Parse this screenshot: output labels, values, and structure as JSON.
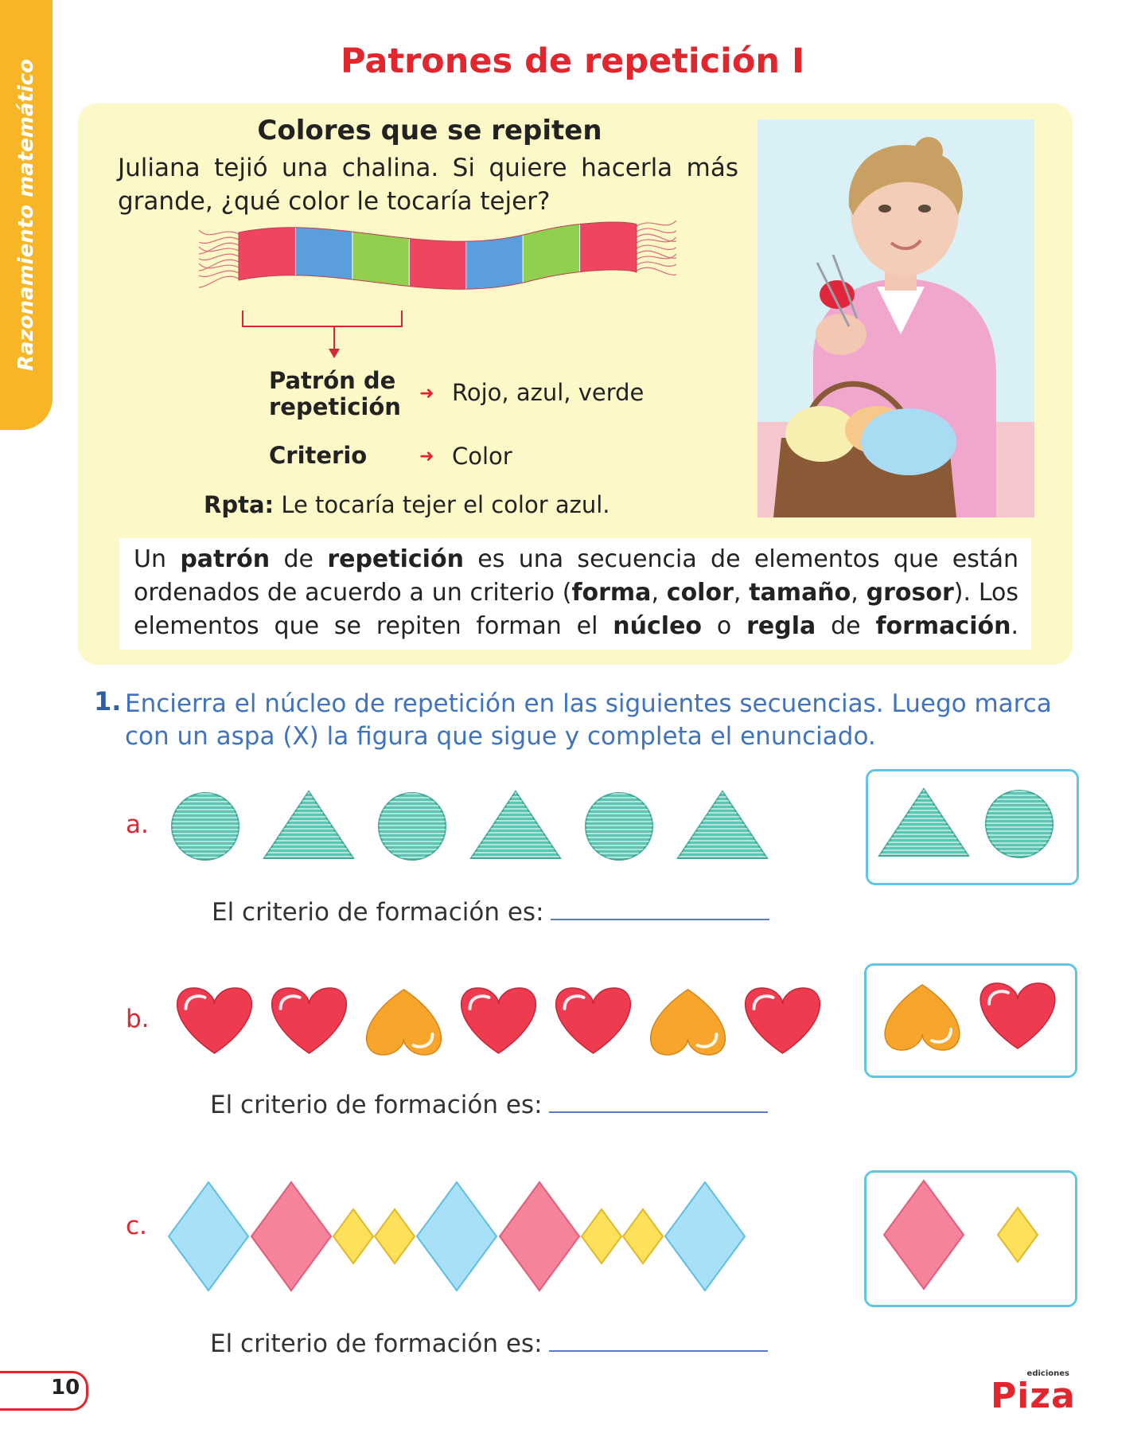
{
  "side_tab": {
    "text": "Razonamiento matemático",
    "color": "#f8b526"
  },
  "title": "Patrones de repetición I",
  "intro": {
    "subtitle": "Colores que se repiten",
    "problem": "Juliana tejió una chalina. Si quiere hacerla más grande, ¿qué color le tocaría tejer?",
    "scarf_stripes": [
      "#ef4560",
      "#5a9edc",
      "#8fd14f",
      "#ef4560",
      "#5a9edc",
      "#8fd14f",
      "#ef4560"
    ],
    "patron_label": "Patrón de repetición",
    "patron_value": "Rojo, azul, verde",
    "criterio_label": "Criterio",
    "criterio_value": "Color",
    "answer_label": "Rpta:",
    "answer_text": "Le tocaría tejer el color azul.",
    "definition": {
      "segments": [
        {
          "t": "Un ",
          "b": false
        },
        {
          "t": "patrón",
          "b": true
        },
        {
          "t": " de ",
          "b": false
        },
        {
          "t": "repetición",
          "b": true
        },
        {
          "t": " es una secuencia de elementos que están ordenados de acuerdo a un criterio (",
          "b": false
        },
        {
          "t": "forma",
          "b": true
        },
        {
          "t": ", ",
          "b": false
        },
        {
          "t": "color",
          "b": true
        },
        {
          "t": ", ",
          "b": false
        },
        {
          "t": "tamaño",
          "b": true
        },
        {
          "t": ", ",
          "b": false
        },
        {
          "t": "grosor",
          "b": true
        },
        {
          "t": "). Los elementos que se repiten forman el ",
          "b": false
        },
        {
          "t": "núcleo",
          "b": true
        },
        {
          "t": " o ",
          "b": false
        },
        {
          "t": "regla",
          "b": true
        },
        {
          "t": " de ",
          "b": false
        },
        {
          "t": "formación",
          "b": true
        },
        {
          "t": ".",
          "b": false
        }
      ]
    }
  },
  "exercise": {
    "number": "1.",
    "instruction": "Encierra el núcleo de repetición en las siguientes secuencias. Luego marca con un aspa (X) la figura que sigue y completa el enunciado.",
    "criterio_prompt": "El criterio de formación es:",
    "rows": [
      {
        "letter": "a.",
        "sequence": [
          "circle",
          "triangle",
          "circle",
          "triangle",
          "circle",
          "triangle"
        ],
        "options": [
          "triangle",
          "circle"
        ]
      },
      {
        "letter": "b.",
        "sequence": [
          "heart-red",
          "heart-red",
          "heart-orange",
          "heart-red",
          "heart-red",
          "heart-orange",
          "heart-red"
        ],
        "options": [
          "heart-orange",
          "heart-red"
        ]
      },
      {
        "letter": "c.",
        "sequence": [
          "diamond-blue",
          "diamond-pink",
          "diamond-yellow-small",
          "diamond-yellow-small",
          "diamond-blue",
          "diamond-pink",
          "diamond-yellow-small",
          "diamond-yellow-small",
          "diamond-blue"
        ],
        "options": [
          "diamond-pink",
          "diamond-yellow-small"
        ]
      }
    ]
  },
  "footer": {
    "page_number": "10",
    "logo_small": "ediciones",
    "logo_big": "Piza"
  },
  "colors": {
    "title_red": "#e3262e",
    "teal": "#5cc6b4",
    "heart_red": "#ee3b4f",
    "heart_orange": "#f7a52b",
    "diamond_blue": "#a8e1f7",
    "diamond_pink": "#f5849a",
    "diamond_yellow": "#fde15b"
  }
}
